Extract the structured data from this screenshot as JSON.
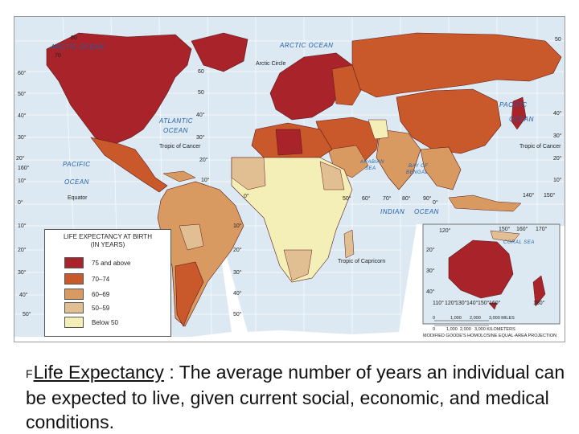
{
  "legend": {
    "title_line1": "LIFE EXPECTANCY AT BIRTH",
    "title_line2": "(IN YEARS)",
    "categories": [
      {
        "label": "75 and above",
        "color": "#a8232a"
      },
      {
        "label": "70–74",
        "color": "#c9582b"
      },
      {
        "label": "60–69",
        "color": "#d99a62"
      },
      {
        "label": "50–59",
        "color": "#e2bf92"
      },
      {
        "label": "Below 50",
        "color": "#f4efb7"
      }
    ]
  },
  "map": {
    "ocean_color": "#dde9f2",
    "ocean_labels": {
      "arctic_left": "ARCTIC OCEAN",
      "arctic_right": "ARCTIC OCEAN",
      "atlantic_1": "ATLANTIC",
      "atlantic_2": "OCEAN",
      "pacific_east_1": "PACIFIC",
      "pacific_east_2": "OCEAN",
      "pacific_west_1": "PACIFIC",
      "pacific_west_2": "OCEAN",
      "indian": "INDIAN",
      "indian_ocean": "OCEAN",
      "arabian_1": "ARABIAN",
      "arabian_2": "SEA",
      "bengal_1": "BAY OF",
      "bengal_2": "BENGAL",
      "coral": "CORAL SEA"
    },
    "line_labels": {
      "arctic_circle": "Arctic Circle",
      "tropic_cancer_w": "Tropic of Cancer",
      "tropic_cancer_e": "Tropic of Cancer",
      "equator": "Equator",
      "tropic_capricorn": "Tropic of Capricorn"
    },
    "lat_labels_left": [
      "80",
      "70",
      "60°",
      "50°",
      "40°",
      "30°",
      "20°",
      "10°",
      "0°",
      "10°",
      "20°",
      "30°",
      "40°",
      "50°"
    ],
    "lat_labels_mid": [
      "60",
      "50",
      "40°",
      "30°",
      "20°",
      "10°",
      "0°",
      "10°",
      "20°",
      "30°",
      "40°",
      "50°"
    ],
    "lat_labels_right": [
      "50",
      "40°",
      "30°",
      "20°",
      "10°",
      "0°"
    ],
    "lon_labels": [
      "160°",
      "50°",
      "60°",
      "70°",
      "80°",
      "90°",
      "140°",
      "150°"
    ],
    "australia_lon_labels": [
      "110°",
      "120°",
      "130°",
      "140°",
      "150°",
      "160°",
      "180°"
    ],
    "australia_top_labels": [
      "120°",
      "150°",
      "160°",
      "170°"
    ],
    "australia_lat_labels": [
      "20°",
      "30°",
      "40°"
    ],
    "scale": {
      "miles": [
        "0",
        "1,000",
        "2,000",
        "3,000 MILES"
      ],
      "km": [
        "0",
        "1,000",
        "2,000",
        "3,000 KILOMETERS"
      ]
    },
    "projection": "MODIFIED GOODE'S HOMOLOSINE EQUAL-AREA PROJECTION"
  },
  "caption": {
    "bullet": "F",
    "term": "Life Expectancy",
    "definition": " : The average number of years  an individual can be expected to live, given current social, economic, and medical conditions."
  }
}
